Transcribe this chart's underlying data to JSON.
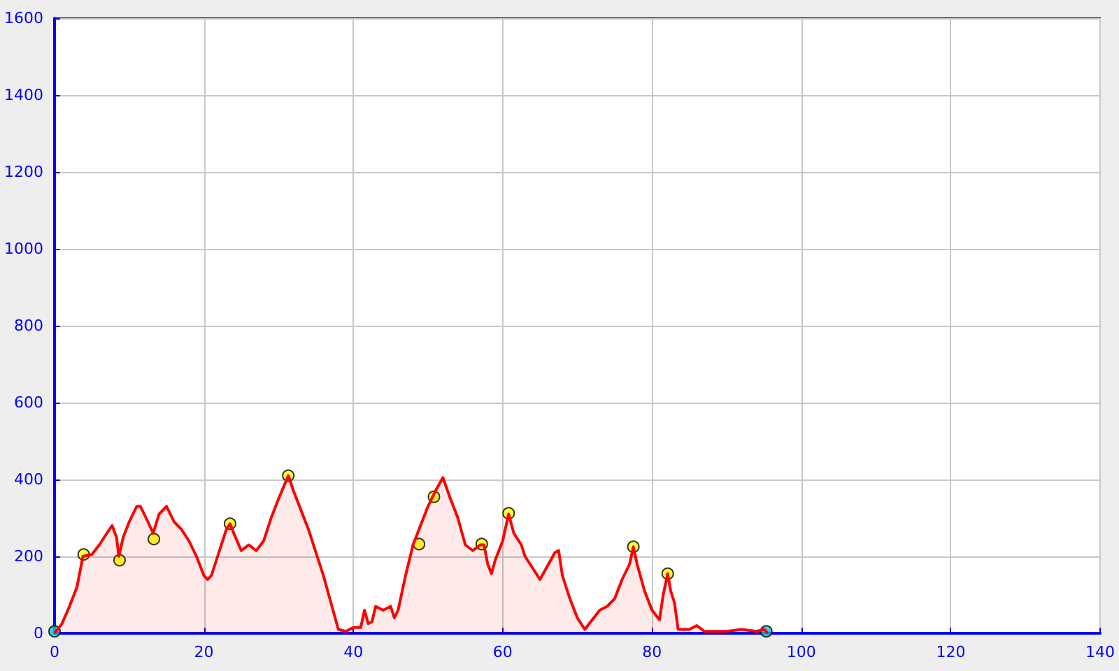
{
  "chart_data": {
    "type": "area",
    "series": [
      {
        "color": "#ff0000",
        "x": [
          0,
          1,
          2,
          3,
          3.8,
          5,
          6,
          7,
          7.7,
          8.3,
          8.6,
          9.2,
          10,
          11,
          11.5,
          12.5,
          13.2,
          14,
          15,
          16,
          17,
          18,
          19,
          20,
          20.5,
          21,
          22,
          23,
          23.5,
          24,
          25,
          26,
          27,
          28,
          29,
          30,
          31.3,
          32,
          33,
          34,
          35,
          36,
          37,
          38,
          39,
          40,
          41,
          41.5,
          42,
          42.5,
          43,
          44,
          45,
          45.5,
          46,
          47,
          48,
          49,
          50,
          51,
          52,
          53,
          54,
          55,
          56,
          57,
          57.5,
          58,
          58.5,
          59,
          60,
          60.8,
          61.5,
          62.5,
          63,
          64,
          65,
          66,
          67,
          67.5,
          68,
          69,
          70,
          71,
          72,
          73,
          74,
          75,
          76,
          77,
          77.5,
          78,
          79,
          80,
          81,
          81.5,
          82.1,
          82.5,
          83,
          83.5,
          85,
          86,
          87,
          90,
          92,
          94,
          95,
          95.5
        ],
        "values": [
          0,
          25,
          70,
          120,
          200,
          205,
          230,
          260,
          280,
          250,
          200,
          250,
          290,
          330,
          330,
          290,
          260,
          310,
          330,
          290,
          270,
          240,
          200,
          150,
          140,
          150,
          210,
          270,
          285,
          260,
          215,
          230,
          215,
          240,
          300,
          350,
          410,
          370,
          320,
          270,
          210,
          150,
          80,
          10,
          5,
          15,
          15,
          60,
          25,
          30,
          70,
          60,
          70,
          40,
          60,
          150,
          230,
          280,
          330,
          370,
          405,
          350,
          300,
          230,
          215,
          230,
          230,
          180,
          155,
          190,
          240,
          310,
          260,
          230,
          200,
          170,
          140,
          175,
          210,
          215,
          150,
          90,
          40,
          10,
          35,
          60,
          70,
          90,
          140,
          180,
          225,
          180,
          110,
          60,
          35,
          100,
          155,
          110,
          80,
          10,
          10,
          20,
          5,
          5,
          10,
          5,
          10,
          0
        ]
      },
      {
        "type": "scatter",
        "marker": "circle",
        "x": [
          0,
          3.9,
          8.7,
          13.3,
          23.5,
          31.3,
          48.8,
          50.8,
          57.2,
          60.8,
          77.5,
          82.1,
          95.3
        ],
        "values": [
          5,
          205,
          190,
          245,
          285,
          410,
          232,
          355,
          232,
          312,
          225,
          155,
          5
        ],
        "colors": [
          "#00ccdd",
          "#ffff00",
          "#ffff00",
          "#ffff00",
          "#ffff00",
          "#ffff00",
          "#ffff00",
          "#ffff00",
          "#ffff00",
          "#ffff00",
          "#ffff00",
          "#ffff00",
          "#00ccdd"
        ]
      }
    ],
    "xlim": [
      0,
      140
    ],
    "xticks": [
      0,
      20,
      40,
      60,
      80,
      100,
      120,
      140
    ],
    "ylim": [
      0,
      1600
    ],
    "yticks": [
      0,
      200,
      400,
      600,
      800,
      1000,
      1200,
      1400,
      1600
    ],
    "grid": true
  }
}
